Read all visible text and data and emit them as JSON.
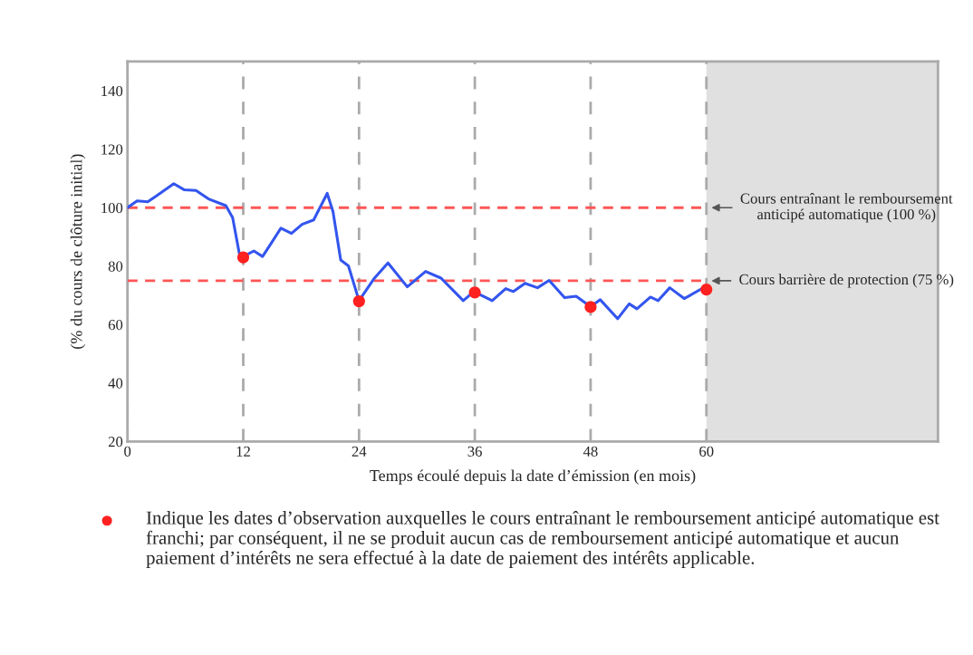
{
  "chart_data": {
    "type": "line",
    "xlabel": "Temps écoulé depuis la date d’émission (en mois)",
    "ylabel": "(% du cours de clôture initial)",
    "xlim": [
      0,
      84
    ],
    "ylim": [
      20,
      150
    ],
    "xticks": [
      0,
      12,
      24,
      36,
      48,
      60
    ],
    "yticks": [
      20,
      40,
      60,
      80,
      100,
      120,
      140
    ],
    "grid": "x",
    "legend": "bottom",
    "series": [
      {
        "color": "#3355ee",
        "x": [
          0,
          1.0,
          2.1,
          2.9,
          4.8,
          5.9,
          7.1,
          8.4,
          10.2,
          10.9,
          11.6,
          12,
          13.1,
          14,
          14.8,
          15.9,
          17,
          18.1,
          19.3,
          20.7,
          21.3,
          22.1,
          22.9,
          24.0,
          25.6,
          27.0,
          29.0,
          30.9,
          32.5,
          34.8,
          35.9,
          37.8,
          39.2,
          40.0,
          41.2,
          42.5,
          43.7,
          45.3,
          46.5,
          48.0,
          49.0,
          50.8,
          52.0,
          52.8,
          54.2,
          55.0,
          56.2,
          57.7,
          59.8
        ],
        "values": [
          100,
          102.3,
          102,
          103.8,
          108.2,
          106.1,
          105.9,
          103,
          100.7,
          96.6,
          84.2,
          83.3,
          85.2,
          83.3,
          87.3,
          93,
          91.2,
          94.3,
          95.8,
          104.9,
          98.7,
          82.1,
          80.1,
          68.2,
          75.9,
          81.1,
          72.9,
          78.2,
          75.9,
          68.2,
          71.3,
          68.2,
          72.3,
          71.3,
          74.1,
          72.6,
          75.1,
          69.2,
          69.7,
          66.1,
          68.5,
          62,
          67.1,
          65.4,
          69.4,
          68.2,
          72.6,
          68.9,
          72.8
        ]
      },
      {
        "type": "scatter",
        "name": "Indique les dates d’observation auxquelles le cours entraînant le remboursement anticipé automatique est franchi; par conséquent, il ne se produit aucun cas de remboursement anticipé automatique et aucun paiement d’intérêts ne sera effectué à la date de paiement des intérêts applicable.",
        "color": "#ff2020",
        "marker": "circle",
        "x": [
          12,
          24,
          36,
          48,
          60
        ],
        "values": [
          83,
          68,
          71,
          66,
          72
        ]
      }
    ],
    "ref_lines": [
      {
        "axis": "y",
        "value": 100,
        "label": "Cours entraînant le remboursement anticipé automatique (100 %)",
        "color": "#ff5555",
        "line_style": "dashed"
      },
      {
        "axis": "y",
        "value": 75,
        "label": "Cours barrière de protection (75 %)",
        "color": "#ff5555",
        "line_style": "dashed"
      }
    ],
    "bands": [
      {
        "axis": "x",
        "from": 60,
        "to": 84,
        "color": "#e0e0e0"
      }
    ]
  }
}
